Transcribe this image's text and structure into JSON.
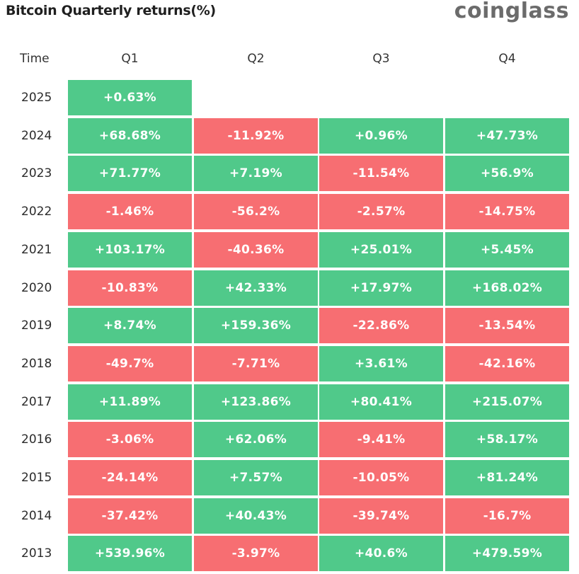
{
  "header": {
    "title": "Bitcoin Quarterly returns(%)",
    "brand": "coinglass"
  },
  "chart_data": {
    "type": "table",
    "title": "Bitcoin Quarterly returns(%)",
    "columns": [
      "Time",
      "Q1",
      "Q2",
      "Q3",
      "Q4"
    ],
    "rows": [
      {
        "year": "2025",
        "values": [
          "+0.63%",
          null,
          null,
          null
        ]
      },
      {
        "year": "2024",
        "values": [
          "+68.68%",
          "-11.92%",
          "+0.96%",
          "+47.73%"
        ]
      },
      {
        "year": "2023",
        "values": [
          "+71.77%",
          "+7.19%",
          "-11.54%",
          "+56.9%"
        ]
      },
      {
        "year": "2022",
        "values": [
          "-1.46%",
          "-56.2%",
          "-2.57%",
          "-14.75%"
        ]
      },
      {
        "year": "2021",
        "values": [
          "+103.17%",
          "-40.36%",
          "+25.01%",
          "+5.45%"
        ]
      },
      {
        "year": "2020",
        "values": [
          "-10.83%",
          "+42.33%",
          "+17.97%",
          "+168.02%"
        ]
      },
      {
        "year": "2019",
        "values": [
          "+8.74%",
          "+159.36%",
          "-22.86%",
          "-13.54%"
        ]
      },
      {
        "year": "2018",
        "values": [
          "-49.7%",
          "-7.71%",
          "+3.61%",
          "-42.16%"
        ]
      },
      {
        "year": "2017",
        "values": [
          "+11.89%",
          "+123.86%",
          "+80.41%",
          "+215.07%"
        ]
      },
      {
        "year": "2016",
        "values": [
          "-3.06%",
          "+62.06%",
          "-9.41%",
          "+58.17%"
        ]
      },
      {
        "year": "2015",
        "values": [
          "-24.14%",
          "+7.57%",
          "-10.05%",
          "+81.24%"
        ]
      },
      {
        "year": "2014",
        "values": [
          "-37.42%",
          "+40.43%",
          "-39.74%",
          "-16.7%"
        ]
      },
      {
        "year": "2013",
        "values": [
          "+539.96%",
          "-3.97%",
          "+40.6%",
          "+479.59%"
        ]
      }
    ]
  },
  "colors": {
    "positive": "#50c98a",
    "negative": "#f76e72"
  }
}
